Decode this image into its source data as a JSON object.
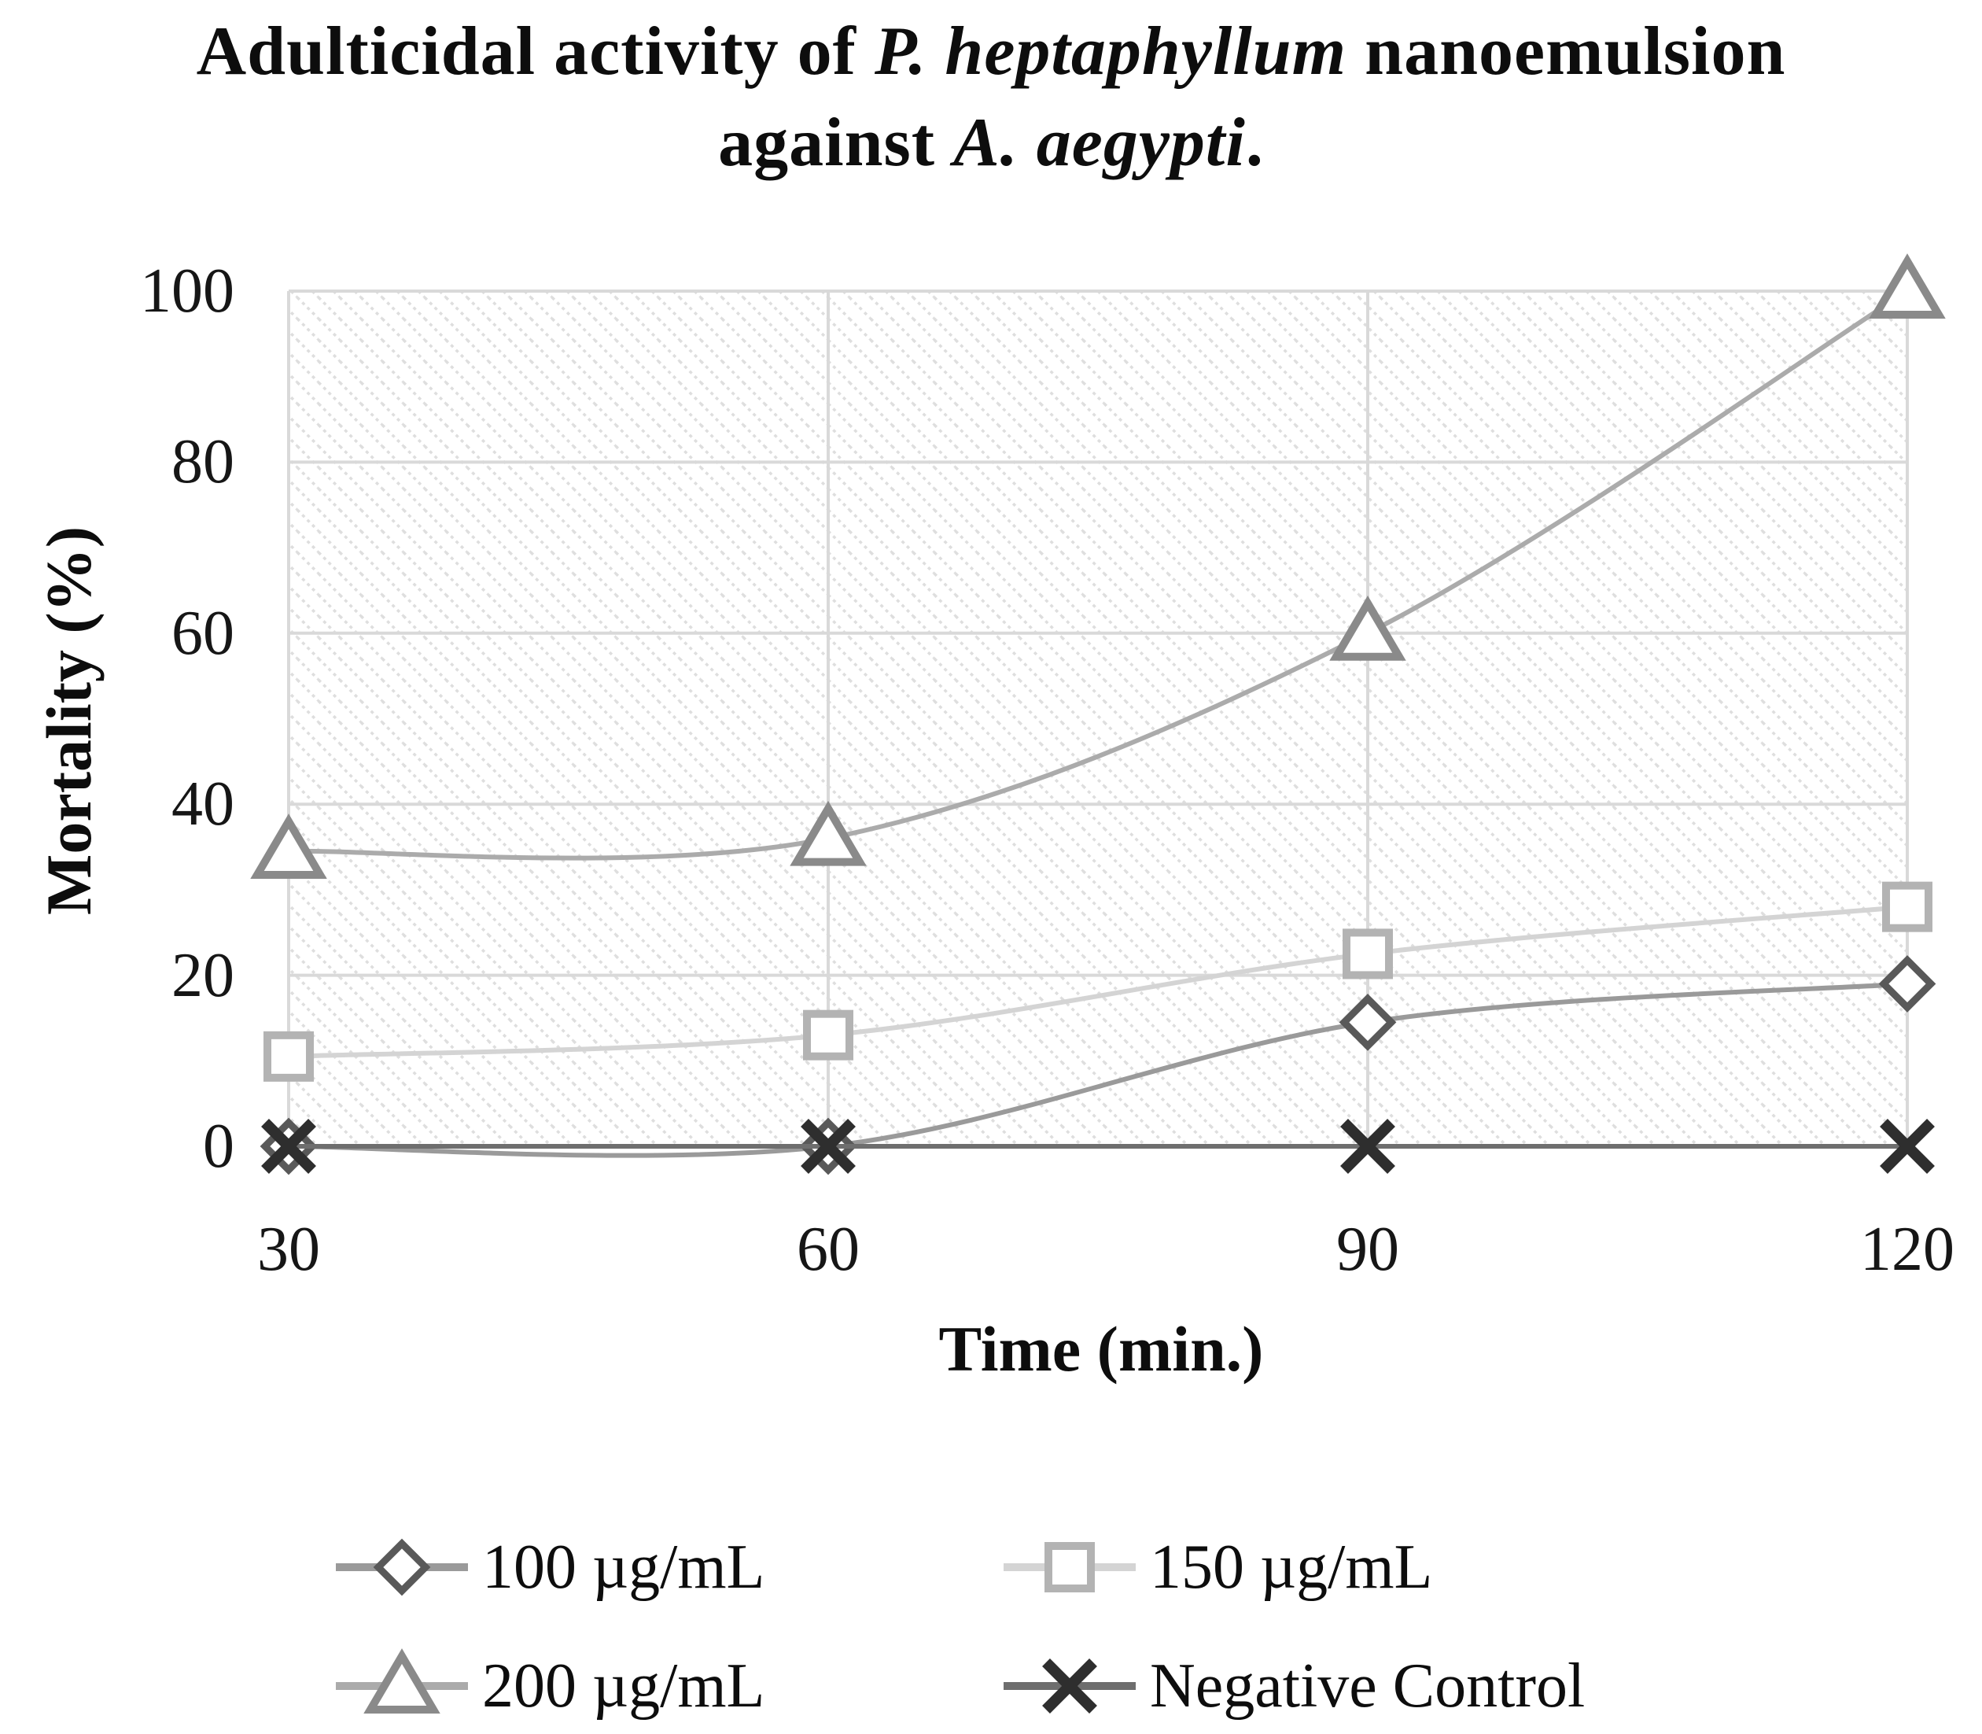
{
  "title": {
    "line1_pre": "Adulticidal activity of ",
    "line1_italic": "P. heptaphyllum",
    "line1_post": " nanoemulsion",
    "line2_pre": "against ",
    "line2_italic": "A. aegypti",
    "line2_post": "."
  },
  "chart_data": {
    "type": "line",
    "title": "Adulticidal activity of P. heptaphyllum nanoemulsion against A. aegypti.",
    "xlabel": "Time (min.)",
    "ylabel": "Mortality (%)",
    "x": [
      30,
      60,
      90,
      120
    ],
    "x_tick_labels": [
      "30",
      "60",
      "90",
      "120"
    ],
    "y_tick_labels": [
      "0",
      "20",
      "40",
      "60",
      "80",
      "100"
    ],
    "y_ticks": [
      0,
      20,
      40,
      60,
      80,
      100
    ],
    "ylim": [
      0,
      100
    ],
    "grid": true,
    "plot_background": "diagonal-hatch",
    "legend_position": "bottom",
    "smooth_lines": true,
    "gridline_color": "#d9d9d9",
    "axis_color": "#6f6f6f",
    "hatch_color": "#dedede",
    "series": [
      {
        "name": "100 µg/mL",
        "marker": "diamond",
        "values": [
          0,
          0,
          14.5,
          19
        ],
        "line_color": "#9a9a9a",
        "marker_color": "#595959"
      },
      {
        "name": "150 µg/mL",
        "marker": "square",
        "values": [
          10.5,
          13,
          22.5,
          28
        ],
        "line_color": "#d4d4d4",
        "marker_color": "#b3b3b3"
      },
      {
        "name": "200 µg/mL",
        "marker": "triangle",
        "values": [
          34.5,
          36,
          60,
          100
        ],
        "line_color": "#ababab",
        "marker_color": "#8a8a8a"
      },
      {
        "name": "Negative Control",
        "marker": "x",
        "values": [
          0,
          0,
          0,
          0
        ],
        "line_color": "#6e6e6e",
        "marker_color": "#2e2e2e"
      }
    ]
  }
}
